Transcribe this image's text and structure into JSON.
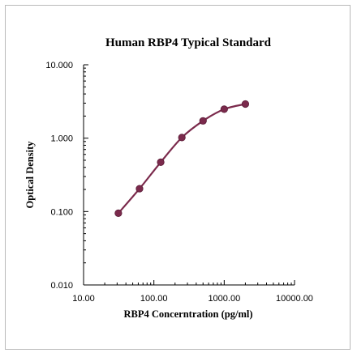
{
  "chart_data": {
    "type": "scatter",
    "title": "Human RBP4 Typical Standard",
    "xlabel": "RBP4 Concerntration (pg/ml)",
    "ylabel": "Optical Density",
    "x_scale": "log",
    "y_scale": "log",
    "xlim": [
      10,
      10000
    ],
    "ylim": [
      0.01,
      10
    ],
    "x_ticks": [
      10,
      100,
      1000,
      10000
    ],
    "x_tick_labels": [
      "10.00",
      "100.00",
      "1000.00",
      "10000.00"
    ],
    "y_ticks": [
      0.01,
      0.1,
      1,
      10
    ],
    "y_tick_labels": [
      "0.010",
      "0.100",
      "1.000",
      "10.000"
    ],
    "grid": false,
    "legend": "none",
    "series": [
      {
        "x": [
          31.25,
          62.5,
          125,
          250,
          500,
          1000,
          2000
        ],
        "y": [
          0.095,
          0.205,
          0.47,
          1.02,
          1.72,
          2.48,
          2.92
        ],
        "marker": "circle",
        "fit_line": "smooth"
      }
    ],
    "colors": {
      "series": "#7b2a4c",
      "axis": "#000000"
    }
  }
}
